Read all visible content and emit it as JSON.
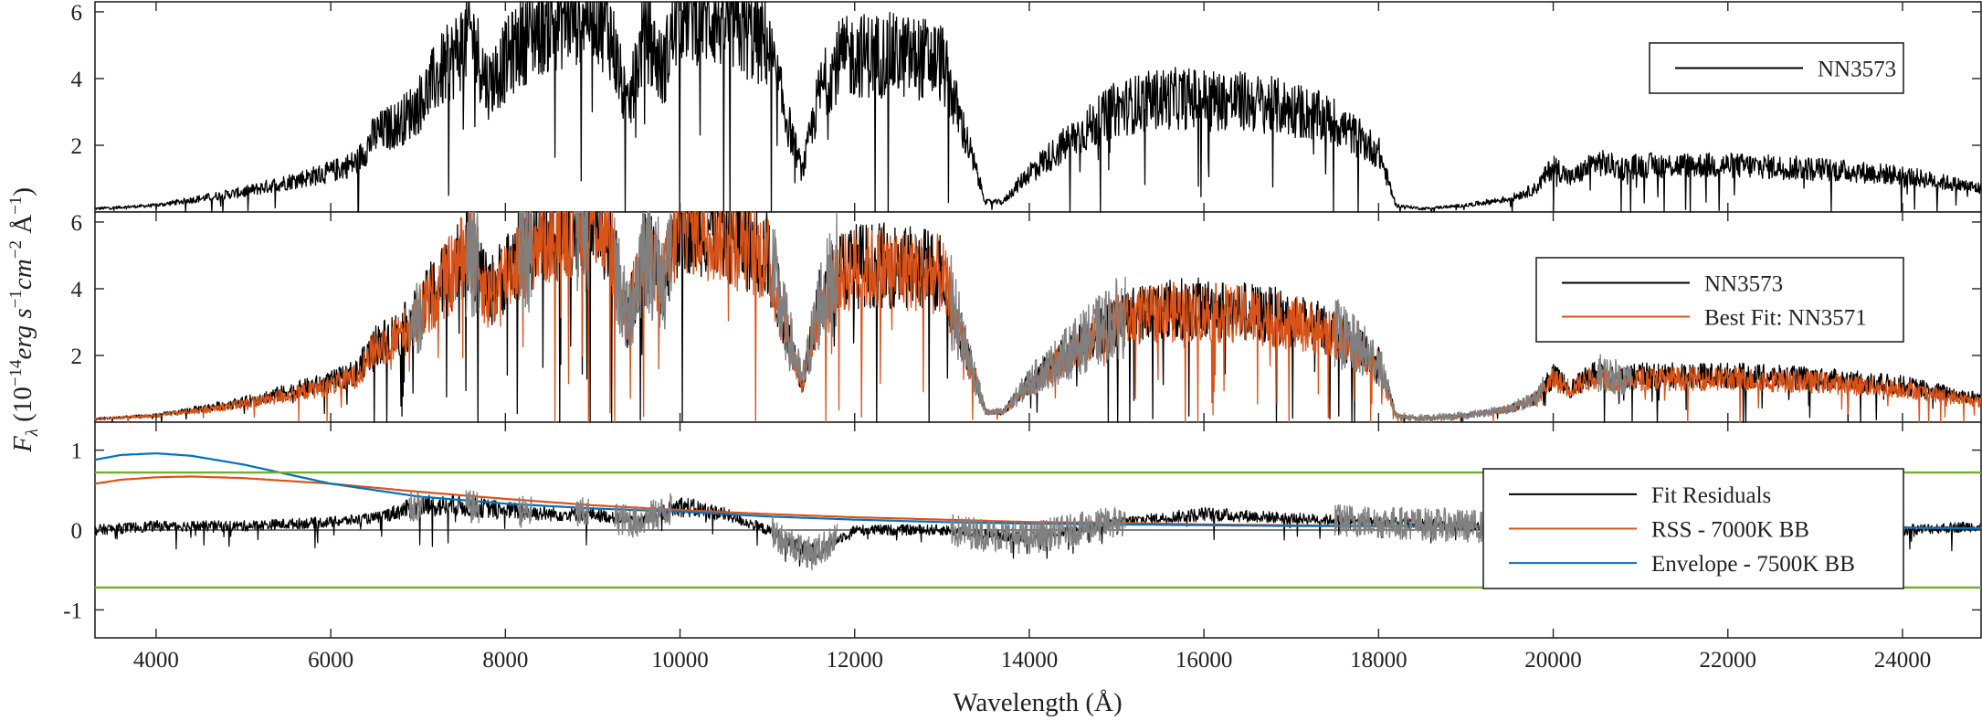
{
  "chart_data": [
    {
      "type": "line",
      "panel": "top",
      "xlim": [
        3300,
        24900
      ],
      "ylim": [
        0,
        6.3
      ],
      "yticks": [
        2,
        4,
        6
      ],
      "legend_position": "upper-right",
      "series": [
        {
          "name": "NN3573",
          "color": "#000000",
          "x": [
            3300,
            4000,
            4500,
            5000,
            5500,
            6000,
            6300,
            6500,
            6800,
            7000,
            7200,
            7400,
            7600,
            7800,
            8000,
            8200,
            8400,
            8600,
            8800,
            9000,
            9200,
            9400,
            9600,
            9800,
            10000,
            10500,
            11000,
            11200,
            11400,
            11600,
            11800,
            12000,
            12400,
            12800,
            13000,
            13300,
            13500,
            13700,
            14000,
            14500,
            15000,
            15500,
            16000,
            16500,
            17000,
            17500,
            18000,
            18200,
            18500,
            19000,
            19500,
            19800,
            20000,
            20200,
            20500,
            20800,
            21000,
            22000,
            23000,
            24000,
            24900
          ],
          "y": [
            0.1,
            0.2,
            0.4,
            0.6,
            0.9,
            1.2,
            1.5,
            2.3,
            2.7,
            3.2,
            4.0,
            4.6,
            5.4,
            3.8,
            4.5,
            5.2,
            5.6,
            5.8,
            6.0,
            6.3,
            5.4,
            3.0,
            5.5,
            4.2,
            6.2,
            5.8,
            5.0,
            3.0,
            1.2,
            3.6,
            4.5,
            4.7,
            4.7,
            4.6,
            4.5,
            2.0,
            0.3,
            0.3,
            1.2,
            2.2,
            3.1,
            3.4,
            3.4,
            3.3,
            3.1,
            2.7,
            1.8,
            0.2,
            0.1,
            0.2,
            0.4,
            0.7,
            1.4,
            1.0,
            1.5,
            1.3,
            1.4,
            1.4,
            1.3,
            1.1,
            0.7
          ]
        }
      ]
    },
    {
      "type": "line",
      "panel": "middle",
      "xlim": [
        3300,
        24900
      ],
      "ylim": [
        0,
        6.3
      ],
      "yticks": [
        2,
        4,
        6
      ],
      "legend_position": "upper-right",
      "series": [
        {
          "name": "NN3573",
          "color": "#000000",
          "x": [
            3300,
            4000,
            4500,
            5000,
            5500,
            6000,
            6300,
            6500,
            6800,
            7000,
            7200,
            7400,
            7600,
            7800,
            8000,
            8200,
            8400,
            8600,
            8800,
            9000,
            9200,
            9400,
            9600,
            9800,
            10000,
            10500,
            11000,
            11200,
            11400,
            11600,
            11800,
            12000,
            12400,
            12800,
            13000,
            13300,
            13500,
            13700,
            14000,
            14500,
            15000,
            15500,
            16000,
            16500,
            17000,
            17500,
            18000,
            18200,
            18500,
            19000,
            19500,
            19800,
            20000,
            20200,
            20500,
            20800,
            21000,
            22000,
            23000,
            24000,
            24900
          ],
          "y": [
            0.1,
            0.2,
            0.4,
            0.6,
            0.9,
            1.2,
            1.5,
            2.3,
            2.7,
            3.2,
            4.0,
            4.6,
            5.4,
            3.8,
            4.5,
            5.2,
            5.6,
            5.8,
            6.0,
            6.3,
            5.4,
            3.0,
            5.5,
            4.2,
            6.2,
            5.8,
            5.0,
            3.0,
            1.2,
            3.6,
            4.5,
            4.7,
            4.7,
            4.6,
            4.5,
            2.0,
            0.3,
            0.3,
            1.2,
            2.2,
            3.1,
            3.4,
            3.4,
            3.3,
            3.1,
            2.7,
            1.8,
            0.2,
            0.1,
            0.2,
            0.4,
            0.7,
            1.4,
            1.0,
            1.5,
            1.3,
            1.4,
            1.4,
            1.3,
            1.1,
            0.7
          ]
        },
        {
          "name": "Best Fit: NN3571",
          "color": "#D95319",
          "x": [
            3300,
            4000,
            4500,
            5000,
            5500,
            6000,
            6300,
            6500,
            6800,
            7000,
            7200,
            7400,
            7600,
            7800,
            8000,
            8200,
            8400,
            8600,
            8800,
            9000,
            9200,
            9400,
            9600,
            9800,
            10000,
            10500,
            11000,
            11200,
            11400,
            11600,
            11800,
            12000,
            12400,
            12800,
            13000,
            13300,
            13500,
            13700,
            14000,
            14500,
            15000,
            15500,
            16000,
            16500,
            17000,
            17500,
            18000,
            18200,
            18500,
            19000,
            19500,
            19800,
            20000,
            20200,
            20500,
            20800,
            21000,
            22000,
            23000,
            24000,
            24900
          ],
          "y": [
            0.1,
            0.2,
            0.35,
            0.55,
            0.8,
            1.1,
            1.4,
            2.2,
            2.6,
            3.1,
            3.9,
            4.5,
            5.3,
            3.7,
            4.4,
            5.1,
            5.5,
            5.8,
            6.0,
            6.3,
            5.4,
            3.0,
            5.4,
            4.1,
            6.1,
            5.7,
            4.9,
            2.9,
            1.1,
            3.5,
            4.4,
            4.6,
            4.6,
            4.5,
            4.4,
            1.9,
            0.3,
            0.3,
            1.1,
            2.1,
            3.0,
            3.3,
            3.3,
            3.2,
            3.0,
            2.6,
            1.7,
            0.2,
            0.1,
            0.2,
            0.4,
            0.7,
            1.3,
            1.0,
            1.4,
            1.2,
            1.3,
            1.3,
            1.2,
            1.0,
            0.6
          ]
        }
      ]
    },
    {
      "type": "line",
      "panel": "bottom",
      "xlim": [
        3300,
        24900
      ],
      "ylim": [
        -1.35,
        1.35
      ],
      "yticks": [
        -1,
        0,
        1
      ],
      "xticks": [
        4000,
        6000,
        8000,
        10000,
        12000,
        14000,
        16000,
        18000,
        20000,
        22000,
        24000
      ],
      "legend_position": "right",
      "series": [
        {
          "name": "Fit Residuals",
          "color": "#000000",
          "x": [
            3300,
            4000,
            5000,
            6000,
            6500,
            7000,
            7500,
            8000,
            8500,
            9000,
            9500,
            10000,
            10500,
            11000,
            11500,
            12000,
            13000,
            14000,
            15000,
            16000,
            17000,
            18000,
            19000,
            20000,
            21000,
            22000,
            23000,
            24000,
            24900
          ],
          "y": [
            0.0,
            0.05,
            0.05,
            0.1,
            0.15,
            0.3,
            0.3,
            0.25,
            0.2,
            0.2,
            0.1,
            0.3,
            0.2,
            0.0,
            -0.3,
            0.0,
            0.0,
            -0.1,
            0.1,
            0.2,
            0.15,
            0.1,
            0.05,
            0.0,
            0.0,
            0.0,
            0.0,
            0.0,
            0.05
          ]
        },
        {
          "name": "RSS - 7000K BB",
          "color": "#D95319",
          "x": [
            3300,
            3600,
            4000,
            4400,
            5000,
            6000,
            7000,
            8000,
            9000,
            10000,
            11000,
            12000,
            13000,
            14000,
            15000,
            16000,
            17000,
            18000,
            19000,
            20000,
            22000,
            24000,
            24900
          ],
          "y": [
            0.58,
            0.63,
            0.66,
            0.67,
            0.65,
            0.58,
            0.48,
            0.39,
            0.31,
            0.25,
            0.2,
            0.16,
            0.13,
            0.1,
            0.09,
            0.07,
            0.06,
            0.05,
            0.05,
            0.04,
            0.03,
            0.03,
            0.02
          ]
        },
        {
          "name": "Envelope - 7500K BB",
          "color": "#0072BD",
          "x": [
            3300,
            3600,
            4000,
            4400,
            5000,
            5500,
            6000,
            7000,
            8000,
            9000,
            10000,
            11000,
            12000,
            13000,
            14000,
            15000,
            16000,
            17000,
            18000,
            19000,
            20000,
            22000,
            24000,
            24900
          ],
          "y": [
            0.88,
            0.94,
            0.96,
            0.93,
            0.82,
            0.7,
            0.58,
            0.42,
            0.33,
            0.27,
            0.23,
            0.17,
            0.13,
            0.1,
            0.08,
            0.07,
            0.06,
            0.05,
            0.05,
            0.04,
            0.04,
            0.03,
            0.03,
            0.02
          ]
        }
      ],
      "threshold_lines": {
        "color": "#77AC30",
        "values": [
          0.72,
          -0.72
        ]
      }
    }
  ],
  "labels": {
    "xlabel": "Wavelength (Å)",
    "ylabel": "F_λ (10^-14 erg s^-1 cm^-2 Å^-1)",
    "ylabel_parts": {
      "F": "F",
      "lambda": "λ",
      "open": " (10",
      "exp1": "−14",
      "erg": "erg",
      "s": " s",
      "exp2": "−1",
      "cm": "cm",
      "exp3": "−2",
      "A": " Å",
      "exp4": "−1",
      "close": ")"
    }
  },
  "colors": {
    "black": "#000000",
    "orange": "#D95319",
    "blue": "#0072BD",
    "green": "#77AC30",
    "masked_grey": "#808080"
  }
}
